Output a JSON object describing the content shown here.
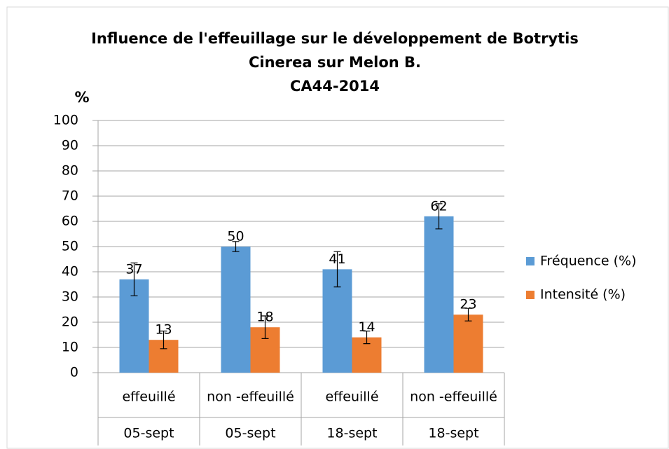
{
  "chart_data": {
    "type": "bar",
    "title": [
      "Influence de l'effeuillage sur le développement de Botrytis",
      "Cinerea sur Melon B.",
      "CA44-2014"
    ],
    "y_label": "%",
    "categories": [
      "effeuillé",
      "non -effeuillé",
      "effeuillé",
      "non -effeuillé"
    ],
    "categories2": [
      "05-sept",
      "05-sept",
      "18-sept",
      "18-sept"
    ],
    "series": [
      {
        "name": "Fréquence (%)",
        "color": "#5b9bd5",
        "values": [
          37,
          50,
          41,
          62
        ],
        "errors": [
          6.5,
          2,
          7,
          5
        ]
      },
      {
        "name": "Intensité (%)",
        "color": "#ed7d31",
        "values": [
          13,
          18,
          14,
          23
        ],
        "errors": [
          3.5,
          4.5,
          2.5,
          2.5
        ]
      }
    ],
    "ylim": [
      0,
      100
    ],
    "yticks": [
      0,
      10,
      20,
      30,
      40,
      50,
      60,
      70,
      80,
      90,
      100
    ],
    "grid": true,
    "legend": "right",
    "data_labels": true
  }
}
